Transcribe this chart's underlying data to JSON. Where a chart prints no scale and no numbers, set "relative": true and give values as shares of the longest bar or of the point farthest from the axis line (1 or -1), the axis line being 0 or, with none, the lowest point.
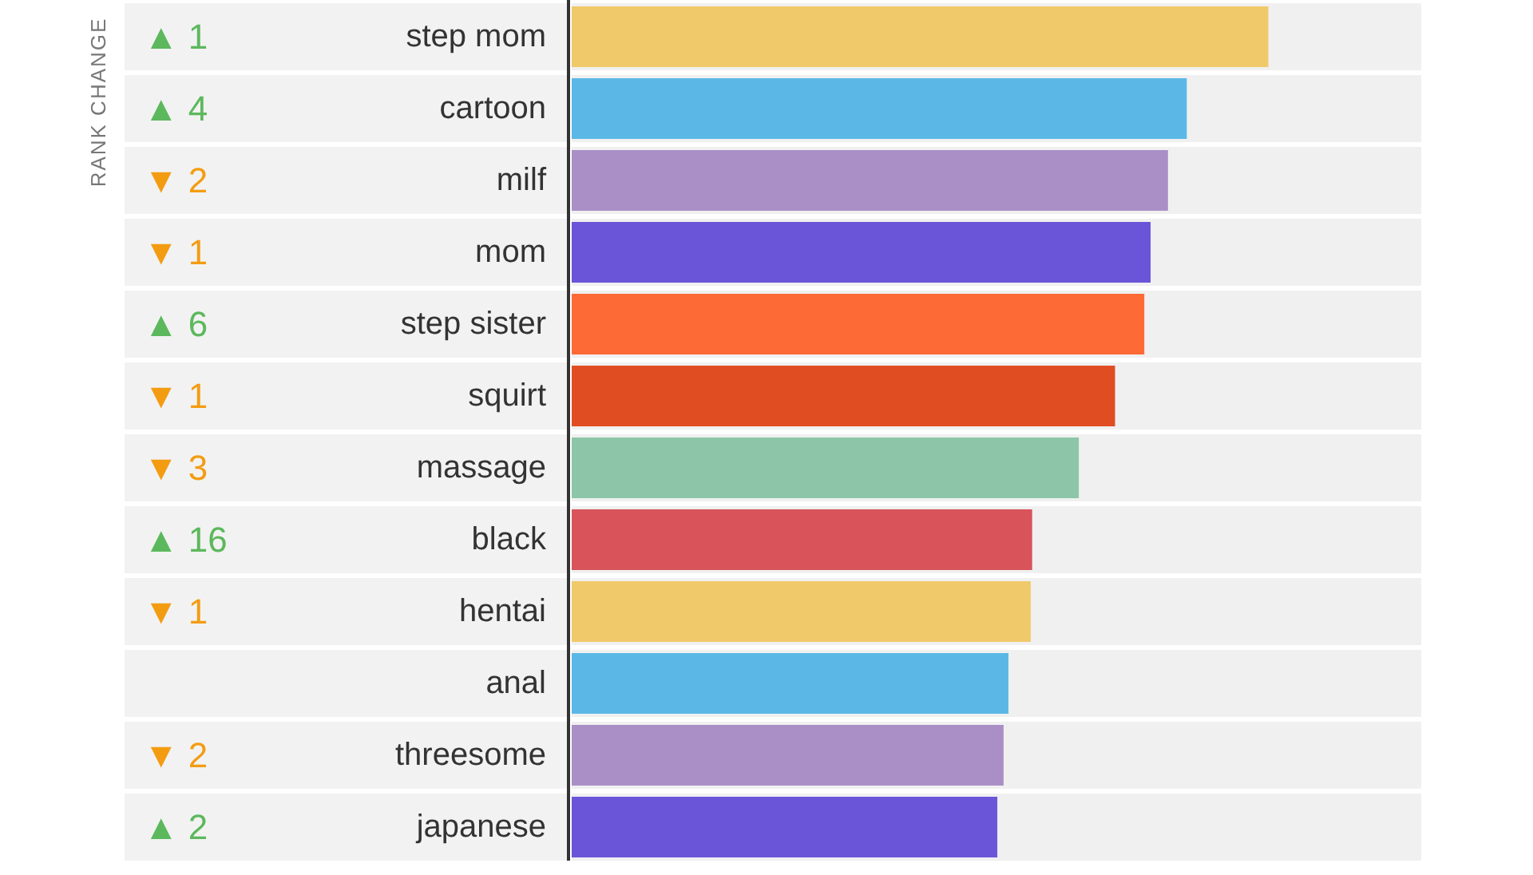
{
  "chart_data": {
    "type": "bar",
    "orientation": "horizontal",
    "relative": true,
    "categories": [
      "step mom",
      "cartoon",
      "milf",
      "mom",
      "step sister",
      "squirt",
      "massage",
      "black",
      "hentai",
      "anal",
      "threesome",
      "japanese"
    ],
    "values": [
      1,
      0.883,
      0.856,
      0.831,
      0.822,
      0.78,
      0.728,
      0.661,
      0.659,
      0.627,
      0.62,
      0.611
    ],
    "colors": [
      "#f0c96a",
      "#5bb8e6",
      "#a98fc6",
      "#6a55d9",
      "#fd6a35",
      "#e14d22",
      "#8dc5a8",
      "#d8535a",
      "#f0c96a",
      "#5bb8e6",
      "#a98fc6",
      "#6a55d9"
    ],
    "annotations": [
      "RANK CHANGE",
      "▲ 1",
      "▲ 4",
      "▼ 2",
      "▼ 1",
      "▲ 6",
      "▼ 1",
      "▼ 3",
      "▲ 16",
      "▼ 1",
      null,
      "▼ 2",
      "▲ 2"
    ]
  }
}
